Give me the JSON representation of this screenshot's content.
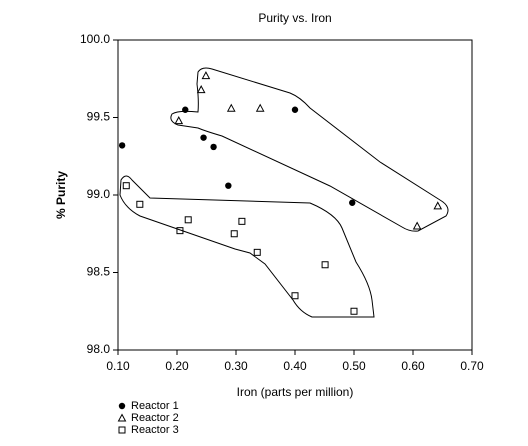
{
  "chart_data": {
    "type": "scatter",
    "title": "Purity vs. Iron",
    "xlabel": "Iron (parts per million)",
    "ylabel": "% Purity",
    "series": [
      {
        "name": "Reactor 1",
        "color": "#000000",
        "marker": "circle",
        "x": [
          0.107,
          0.214,
          0.245,
          0.262,
          0.287,
          0.4,
          0.497
        ],
        "values": [
          99.32,
          99.55,
          99.37,
          99.31,
          99.06,
          99.55,
          98.95
        ]
      },
      {
        "name": "Reactor 2",
        "color": "#000000",
        "marker": "triangle",
        "x": [
          0.249,
          0.241,
          0.203,
          0.292,
          0.341,
          0.607,
          0.642
        ],
        "values": [
          99.77,
          99.68,
          99.48,
          99.56,
          99.56,
          98.8,
          98.93
        ]
      },
      {
        "name": "Reactor 3",
        "color": "#000000",
        "marker": "square",
        "x": [
          0.114,
          0.137,
          0.219,
          0.205,
          0.31,
          0.297,
          0.336,
          0.451,
          0.4,
          0.5
        ],
        "values": [
          99.06,
          98.94,
          98.84,
          98.77,
          98.83,
          98.75,
          98.63,
          98.55,
          98.35,
          98.25
        ]
      }
    ],
    "xlim": [
      0.1,
      0.7
    ],
    "xticks": [
      {
        "value": 0.1,
        "label": "0.10"
      },
      {
        "value": 0.2,
        "label": "0.20"
      },
      {
        "value": 0.3,
        "label": "0.30"
      },
      {
        "value": 0.4,
        "label": "0.40"
      },
      {
        "value": 0.5,
        "label": "0.50"
      },
      {
        "value": 0.6,
        "label": "0.60"
      },
      {
        "value": 0.7,
        "label": "0.70"
      }
    ],
    "ylim": [
      98,
      100
    ],
    "yticks": [
      {
        "value": 98,
        "label": "98.0"
      },
      98.5,
      {
        "value": 99,
        "label": "99.0"
      },
      99.5,
      {
        "value": 100,
        "label": "100.0"
      }
    ],
    "grid": false,
    "legend": "bottom-left"
  }
}
